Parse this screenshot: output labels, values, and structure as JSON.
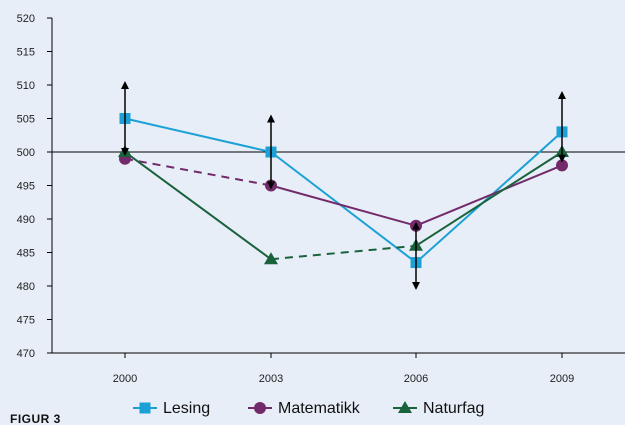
{
  "figure_label": "FIGUR 3",
  "colors": {
    "background": "#e7eef7",
    "axis": "#000000",
    "lesing": "#1ba1d6",
    "matematikk": "#722a6b",
    "naturfag": "#19623c",
    "arrow": "#000000"
  },
  "chart_data": {
    "type": "line",
    "x": [
      "2000",
      "2003",
      "2006",
      "2009"
    ],
    "ylim": [
      470,
      520
    ],
    "yticks": [
      "470",
      "475",
      "480",
      "485",
      "490",
      "495",
      "500",
      "505",
      "510",
      "515",
      "520"
    ],
    "reference_line": 500,
    "grid": false,
    "legend_position": "bottom",
    "series": [
      {
        "name": "Lesing",
        "marker": "square",
        "values": [
          505,
          500,
          483.5,
          503
        ],
        "dashed_segments": []
      },
      {
        "name": "Matematikk",
        "marker": "circle",
        "values": [
          499,
          495,
          489,
          498
        ],
        "dashed_segments": [
          0
        ]
      },
      {
        "name": "Naturfag",
        "marker": "triangle",
        "values": [
          500,
          484,
          486,
          500
        ],
        "dashed_segments": [
          1
        ]
      }
    ],
    "change_arrows": [
      {
        "x": "2000",
        "from": 500,
        "to": 510
      },
      {
        "x": "2003",
        "from": 495,
        "to": 505
      },
      {
        "x": "2006",
        "from": 489,
        "to": 480
      },
      {
        "x": "2009",
        "from": 499,
        "to": 508.5
      }
    ]
  }
}
